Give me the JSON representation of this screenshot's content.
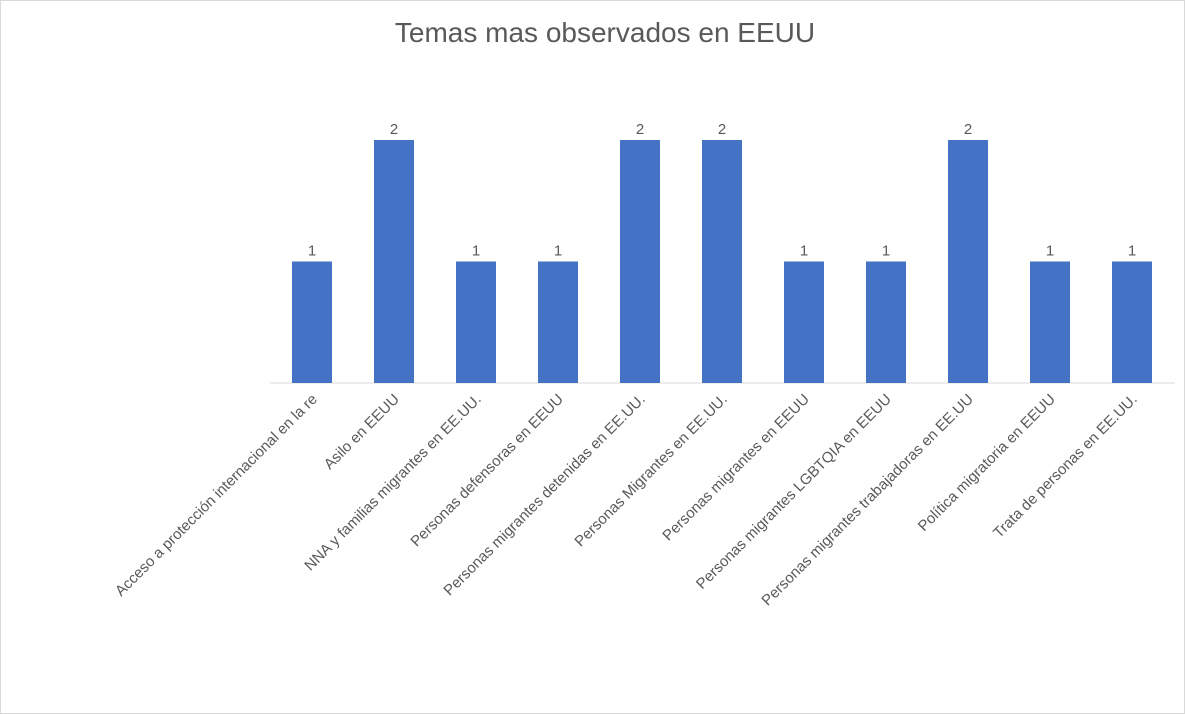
{
  "chart_data": {
    "type": "bar",
    "title": "Temas mas observados en EEUU",
    "categories": [
      "Acceso a protección internacional en la re",
      "Asilo en EEUU",
      "NNA y familias migrantes en EE.UU.",
      "Personas defensoras en EEUU",
      "Personas migrantes detenidas en EE.UU.",
      "Personas Migrantes en EE.UU.",
      "Personas migrantes en EEUU",
      "Personas migrantes LGBTQIA en EEUU",
      "Personas migrantes trabajadoras en EE.UU",
      "Política migratoria en EEUU",
      "Trata de personas en EE.UU."
    ],
    "values": [
      1,
      2,
      1,
      1,
      2,
      2,
      1,
      1,
      2,
      1,
      1
    ],
    "color": "#4472c4"
  }
}
